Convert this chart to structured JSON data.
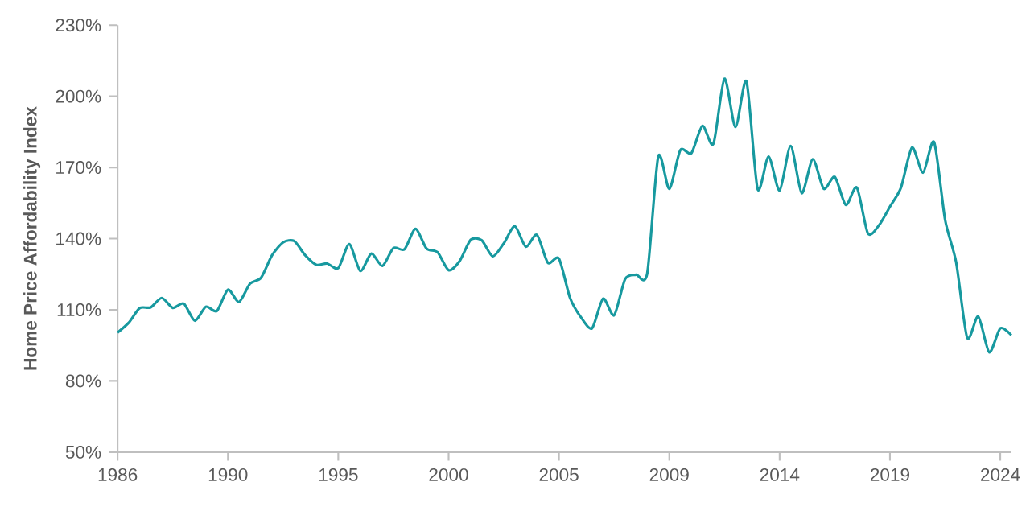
{
  "chart_data": {
    "type": "line",
    "ylabel": "Home Price Affordability Index",
    "categories": [
      "1986",
      null,
      null,
      null,
      null,
      null,
      null,
      null,
      null,
      null,
      "1990",
      null,
      null,
      null,
      null,
      null,
      null,
      null,
      null,
      null,
      "1995",
      null,
      null,
      null,
      null,
      null,
      null,
      null,
      null,
      null,
      "2000",
      null,
      null,
      null,
      null,
      null,
      null,
      null,
      null,
      null,
      "2005",
      null,
      null,
      null,
      null,
      null,
      null,
      null,
      null,
      null,
      "2009",
      null,
      null,
      null,
      null,
      null,
      null,
      null,
      null,
      null,
      "2014",
      null,
      null,
      null,
      null,
      null,
      null,
      null,
      null,
      null,
      "2019",
      null,
      null,
      null,
      null,
      null,
      null,
      null,
      null,
      null,
      "2024",
      null
    ],
    "series": [
      {
        "color": "#17999f",
        "values": [
          100.4,
          104.5,
          110.7,
          111,
          115,
          110.8,
          112.6,
          105.4,
          111.3,
          109.5,
          118.5,
          113.3,
          121,
          123.5,
          133,
          138.4,
          139,
          133,
          129,
          129.5,
          127.6,
          137.7,
          126.4,
          133.7,
          128.5,
          136,
          135.5,
          144.1,
          135.8,
          134.3,
          126.7,
          130.5,
          139.5,
          139.3,
          132.5,
          138,
          145.2,
          136.6,
          141.6,
          129.8,
          131.6,
          115.1,
          106.8,
          102.2,
          114.7,
          107.7,
          123,
          124.8,
          125.3,
          174.6,
          161,
          177.3,
          176,
          187.5,
          180,
          207.4,
          187,
          206.2,
          161,
          174.6,
          160.3,
          179.1,
          159.2,
          173.5,
          161,
          166,
          154.2,
          161.5,
          142.2,
          145.6,
          153.5,
          161.5,
          178.4,
          167.8,
          180.7,
          147.9,
          130,
          98.2,
          107.2,
          92.1,
          102.2,
          99.3
        ]
      }
    ],
    "ylim": [
      50,
      230
    ],
    "yticks": [
      {
        "value": 50,
        "label": "50%"
      },
      {
        "value": 80,
        "label": "80%"
      },
      {
        "value": 110,
        "label": "110%"
      },
      {
        "value": 140,
        "label": "140%"
      },
      {
        "value": 170,
        "label": "170%"
      },
      {
        "value": 200,
        "label": "200%"
      },
      {
        "value": 230,
        "label": "230%"
      }
    ],
    "grid": false,
    "marker": "none",
    "line_style": "solid"
  }
}
